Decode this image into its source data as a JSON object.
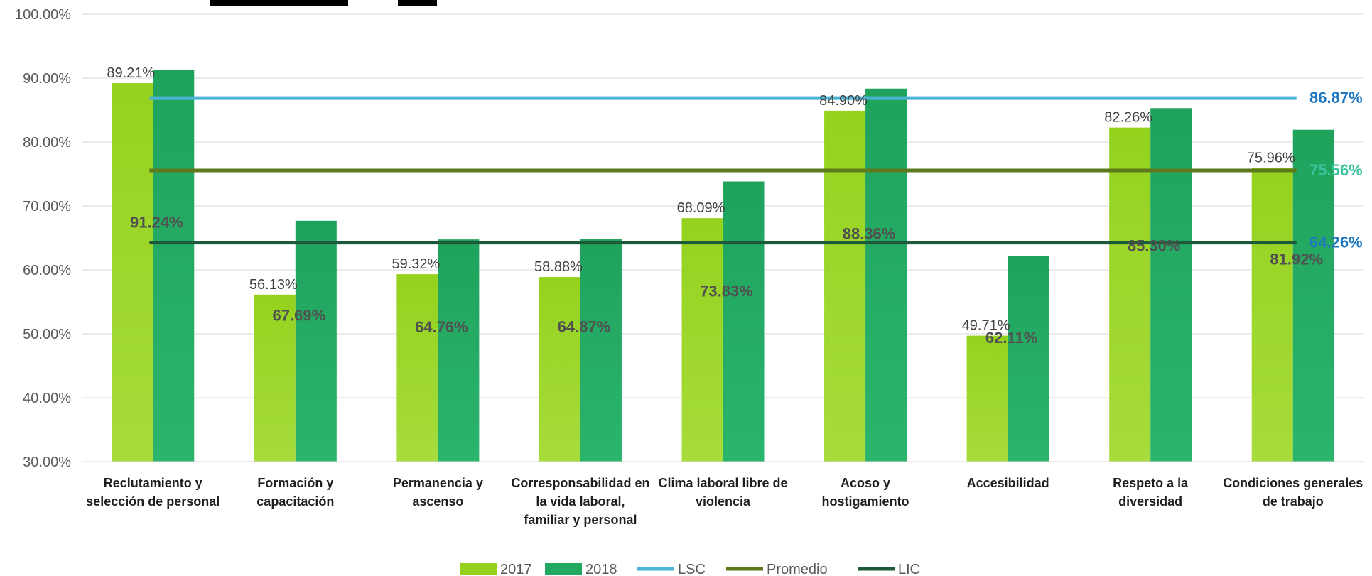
{
  "chart_data": {
    "type": "bar",
    "categories": [
      [
        "Reclutamiento y",
        "selección de personal"
      ],
      [
        "Formación y",
        "capacitación"
      ],
      [
        "Permanencia y",
        "ascenso"
      ],
      [
        "Corresponsabilidad en",
        "la vida laboral,",
        "familiar y personal"
      ],
      [
        "Clima laboral libre de",
        "violencia"
      ],
      [
        "Acoso y",
        "hostigamiento"
      ],
      [
        "Accesibilidad"
      ],
      [
        "Respeto a la",
        "diversidad"
      ],
      [
        "Condiciones generales",
        "de trabajo"
      ]
    ],
    "series": [
      {
        "name": "2017",
        "color": "#8fd11c",
        "values": [
          89.21,
          56.13,
          59.32,
          58.88,
          68.09,
          84.9,
          49.71,
          82.26,
          75.96
        ],
        "labels": [
          "89.21%",
          "56.13%",
          "59.32%",
          "58.88%",
          "68.09%",
          "84.90%",
          "49.71%",
          "82.26%",
          "75.96%"
        ]
      },
      {
        "name": "2018",
        "color": "#23a962",
        "values": [
          91.24,
          67.69,
          64.76,
          64.87,
          73.83,
          88.36,
          62.11,
          85.3,
          81.92
        ],
        "labels": [
          "91.24%",
          "67.69%",
          "64.76%",
          "64.87%",
          "73.83%",
          "88.36%",
          "62.11%",
          "85.30%",
          "81.92%"
        ]
      }
    ],
    "reference_lines": [
      {
        "name": "LSC",
        "value": 86.87,
        "label": "86.87%",
        "color": "#4bb3d6",
        "label_color": "#1f77c0"
      },
      {
        "name": "Promedio",
        "value": 75.56,
        "label": "75.56%",
        "color": "#5c7a1c",
        "label_color": "#3cc3a0"
      },
      {
        "name": "LIC",
        "value": 64.26,
        "label": "64.26%",
        "color": "#1d5a3c",
        "label_color": "#1f77c0"
      }
    ],
    "ylim": [
      30,
      100
    ],
    "yticks": [
      "30.00%",
      "40.00%",
      "50.00%",
      "60.00%",
      "70.00%",
      "80.00%",
      "90.00%",
      "100.00%"
    ],
    "legend_position": "bottom",
    "grid": true
  }
}
